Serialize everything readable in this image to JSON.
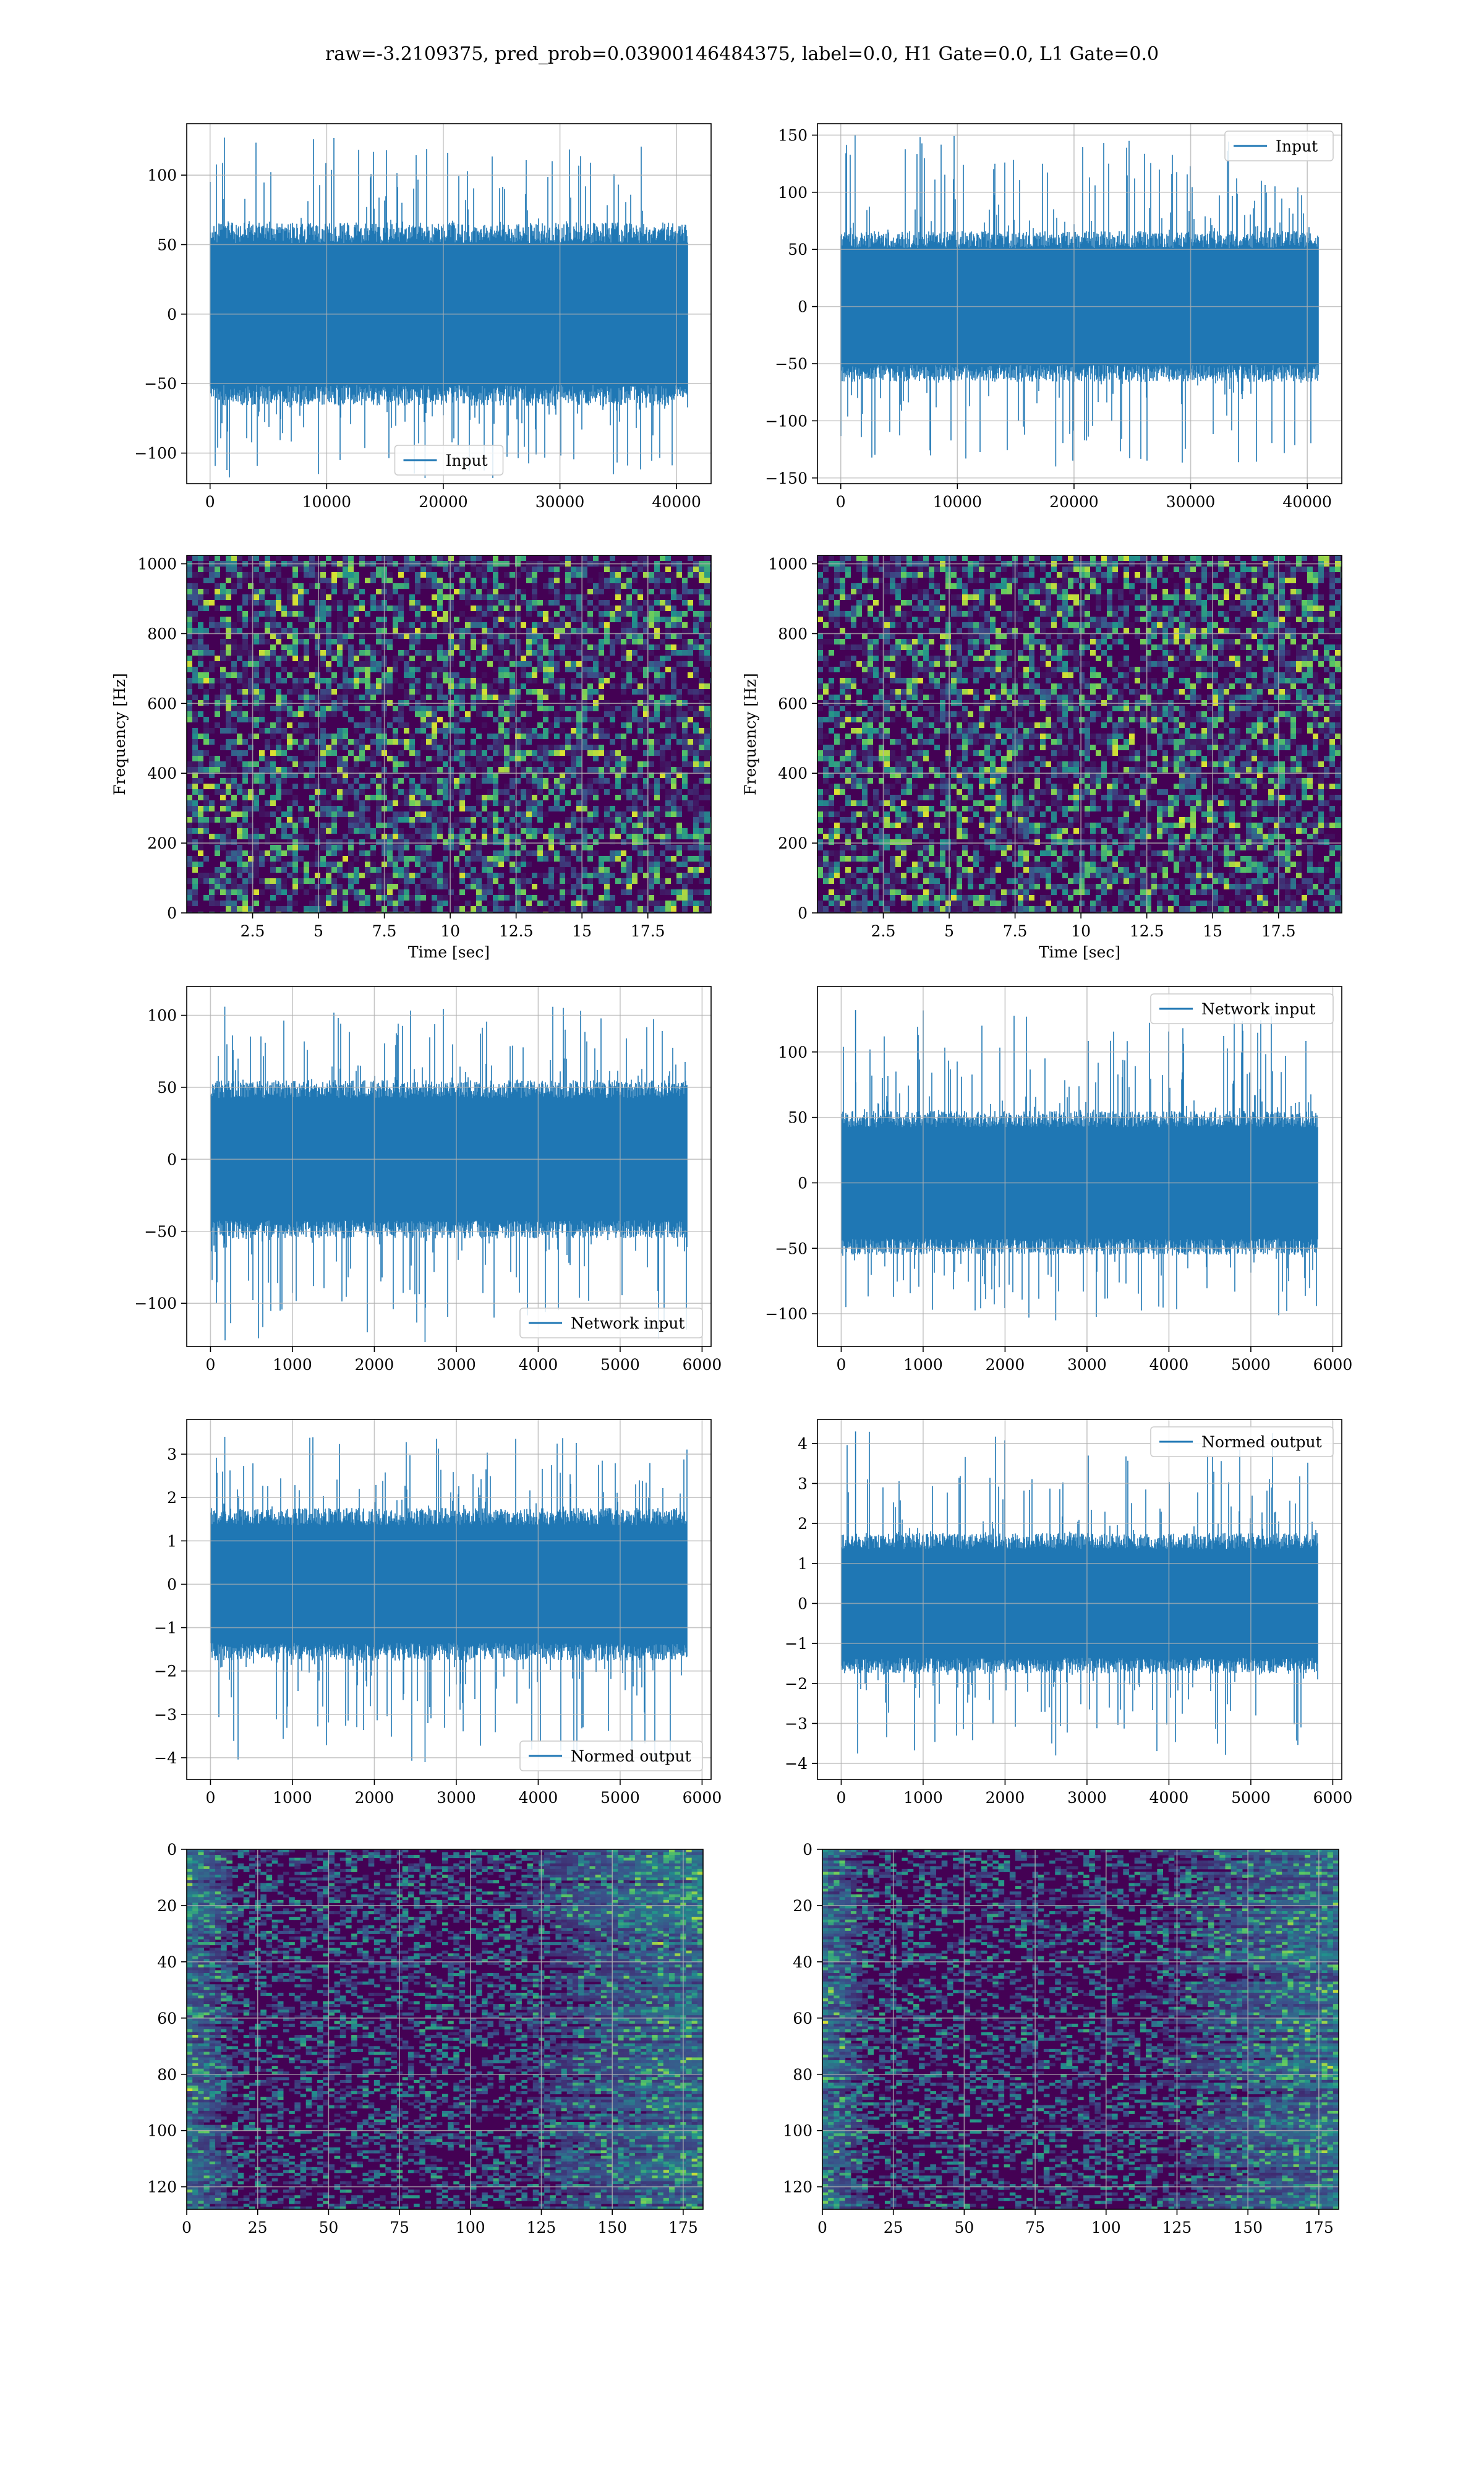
{
  "figure": {
    "title": "raw=-3.2109375, pred_prob=0.03900146484375, label=0.0, H1 Gate=0.0, L1 Gate=0.0"
  },
  "colors": {
    "line": "#1f77b4",
    "grid": "#b0b0b0",
    "viridis_low": "#440154",
    "viridis_mid": "#21918c",
    "viridis_high": "#fde725"
  },
  "chart_data": [
    {
      "id": "r1c1",
      "type": "line",
      "panel": [
        0,
        0
      ],
      "legend": {
        "label": "Input",
        "loc": "lower center"
      },
      "xlim": [
        -2000,
        42960
      ],
      "ylim": [
        -122,
        137
      ],
      "xticks": [
        0,
        10000,
        20000,
        30000,
        40000
      ],
      "yticks": [
        -100,
        -50,
        0,
        50,
        100
      ],
      "signal": {
        "n": 40960,
        "core": 60,
        "peak_max": 127,
        "peak_min": -118
      },
      "grid": true
    },
    {
      "id": "r1c2",
      "type": "line",
      "panel": [
        0,
        1
      ],
      "legend": {
        "label": "Input",
        "loc": "upper right"
      },
      "xlim": [
        -2000,
        42960
      ],
      "ylim": [
        -155,
        160
      ],
      "xticks": [
        0,
        10000,
        20000,
        30000,
        40000
      ],
      "yticks": [
        -150,
        -100,
        -50,
        0,
        50,
        100,
        150
      ],
      "signal": {
        "n": 40960,
        "core": 60,
        "peak_max": 150,
        "peak_min": -140
      },
      "grid": true
    },
    {
      "id": "r2c1",
      "type": "heatmap",
      "panel": [
        1,
        0
      ],
      "xlim": [
        0,
        19.9
      ],
      "ylim": [
        0,
        1024
      ],
      "xticks": [
        2.5,
        5.0,
        7.5,
        10.0,
        12.5,
        15.0,
        17.5
      ],
      "yticks": [
        0,
        200,
        400,
        600,
        800,
        1000
      ],
      "xlabel": "Time [sec]",
      "ylabel": "Frequency [Hz]",
      "grid": true
    },
    {
      "id": "r2c2",
      "type": "heatmap",
      "panel": [
        1,
        1
      ],
      "xlim": [
        0,
        19.9
      ],
      "ylim": [
        0,
        1024
      ],
      "xticks": [
        2.5,
        5.0,
        7.5,
        10.0,
        12.5,
        15.0,
        17.5
      ],
      "yticks": [
        0,
        200,
        400,
        600,
        800,
        1000
      ],
      "xlabel": "Time [sec]",
      "ylabel": "Frequency [Hz]",
      "grid": true
    },
    {
      "id": "r3c1",
      "type": "line",
      "panel": [
        2,
        0
      ],
      "legend": {
        "label": "Network input",
        "loc": "lower right"
      },
      "xlim": [
        -290,
        6110
      ],
      "ylim": [
        -130,
        120
      ],
      "xticks": [
        0,
        1000,
        2000,
        3000,
        4000,
        5000,
        6000
      ],
      "yticks": [
        -100,
        -50,
        0,
        50,
        100
      ],
      "signal": {
        "n": 5820,
        "core": 50,
        "peak_max": 106,
        "peak_min": -127
      },
      "grid": true
    },
    {
      "id": "r3c2",
      "type": "line",
      "panel": [
        2,
        1
      ],
      "legend": {
        "label": "Network input",
        "loc": "upper right"
      },
      "xlim": [
        -290,
        6110
      ],
      "ylim": [
        -125,
        150
      ],
      "xticks": [
        0,
        1000,
        2000,
        3000,
        4000,
        5000,
        6000
      ],
      "yticks": [
        -100,
        -50,
        0,
        50,
        100
      ],
      "signal": {
        "n": 5820,
        "core": 50,
        "peak_max": 132,
        "peak_min": -105
      },
      "grid": true
    },
    {
      "id": "r4c1",
      "type": "line",
      "panel": [
        3,
        0
      ],
      "legend": {
        "label": "Normed output",
        "loc": "lower right"
      },
      "xlim": [
        -290,
        6110
      ],
      "ylim": [
        -4.5,
        3.8
      ],
      "xticks": [
        0,
        1000,
        2000,
        3000,
        4000,
        5000,
        6000
      ],
      "yticks": [
        -4,
        -3,
        -2,
        -1,
        0,
        1,
        2,
        3
      ],
      "signal": {
        "n": 5820,
        "core": 1.6,
        "peak_max": 3.4,
        "peak_min": -4.1
      },
      "grid": true
    },
    {
      "id": "r4c2",
      "type": "line",
      "panel": [
        3,
        1
      ],
      "legend": {
        "label": "Normed output",
        "loc": "upper right"
      },
      "xlim": [
        -290,
        6110
      ],
      "ylim": [
        -4.4,
        4.6
      ],
      "xticks": [
        0,
        1000,
        2000,
        3000,
        4000,
        5000,
        6000
      ],
      "yticks": [
        -4,
        -3,
        -2,
        -1,
        0,
        1,
        2,
        3,
        4
      ],
      "signal": {
        "n": 5820,
        "core": 1.6,
        "peak_max": 4.3,
        "peak_min": -3.8
      },
      "grid": true
    },
    {
      "id": "r5c1",
      "type": "heatmap",
      "panel": [
        4,
        0
      ],
      "xlim": [
        0,
        182
      ],
      "ylim": [
        128,
        0
      ],
      "xticks": [
        0,
        25,
        50,
        75,
        100,
        125,
        150,
        175
      ],
      "yticks": [
        0,
        20,
        40,
        60,
        80,
        100,
        120
      ],
      "grid": true
    },
    {
      "id": "r5c2",
      "type": "heatmap",
      "panel": [
        4,
        1
      ],
      "xlim": [
        0,
        182
      ],
      "ylim": [
        128,
        0
      ],
      "xticks": [
        0,
        25,
        50,
        75,
        100,
        125,
        150,
        175
      ],
      "yticks": [
        0,
        20,
        40,
        60,
        80,
        100,
        120
      ],
      "grid": true
    }
  ]
}
